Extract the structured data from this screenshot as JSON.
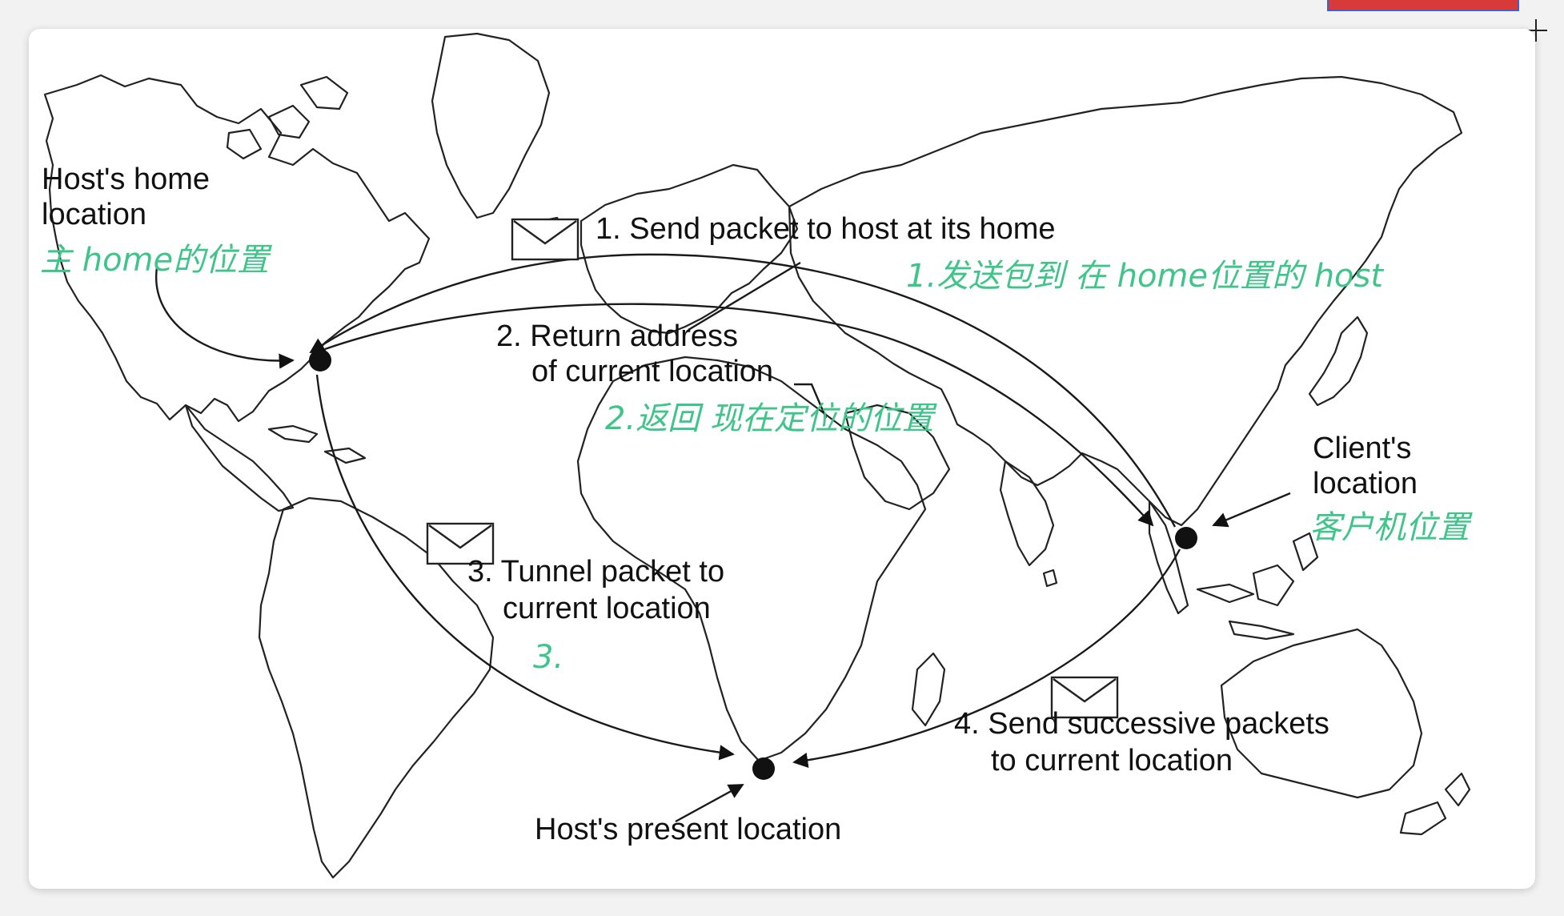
{
  "labels": {
    "home": [
      "Host's home",
      "location"
    ],
    "step1": "1. Send packet to host at its home",
    "step2": [
      "2. Return address",
      "of current location"
    ],
    "step3": [
      "3. Tunnel packet to",
      "current location"
    ],
    "step4": [
      "4. Send successive packets",
      "to current location"
    ],
    "client": [
      "Client's",
      "location"
    ],
    "present": "Host's present location"
  },
  "annotations": {
    "home": "主 home的位置",
    "step1": "1.发送包到 在 home位置的 host",
    "step2": "2.返回 现在定位的位置",
    "step3": "3.",
    "client": "客户机位置"
  },
  "colors": {
    "ink": "#3fc48a",
    "line": "#1a1a1a"
  }
}
